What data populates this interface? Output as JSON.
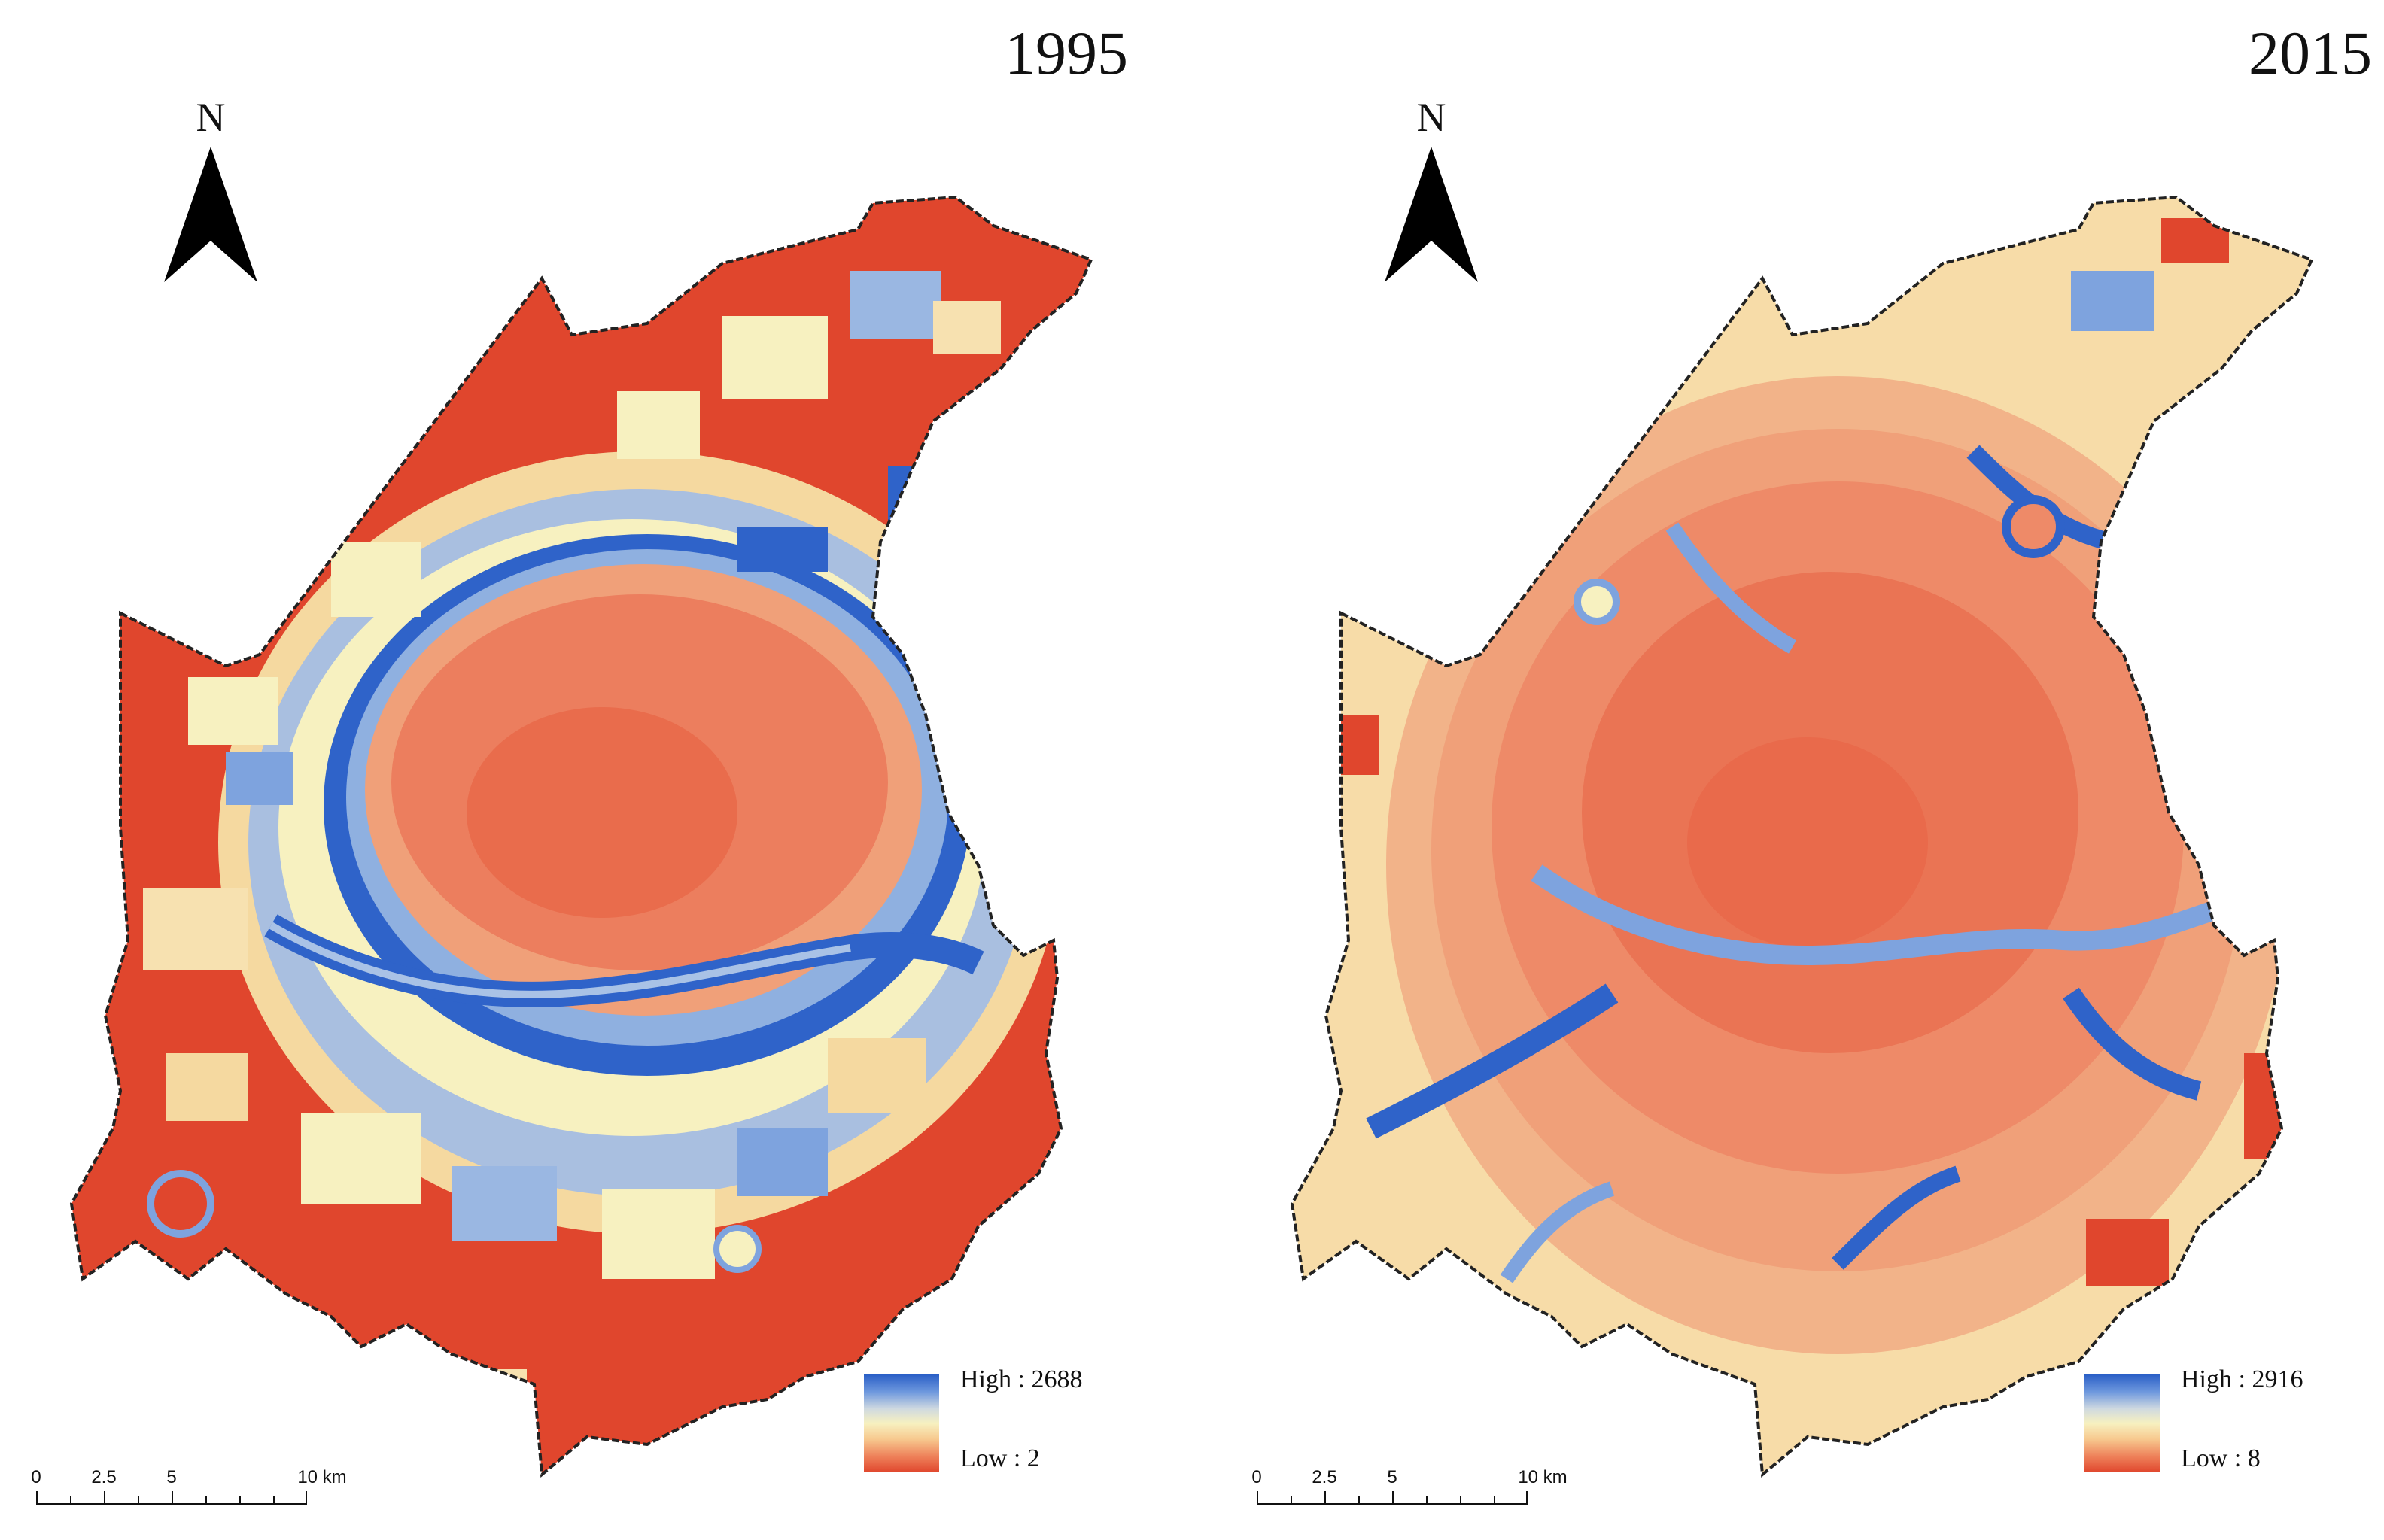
{
  "panels": [
    {
      "year": "1995",
      "north_label": "N",
      "legend": {
        "high_label": "High : 2688",
        "low_label": "Low : 2"
      },
      "scale": {
        "ticks": [
          "0",
          "2.5",
          "5",
          "10 km"
        ]
      }
    },
    {
      "year": "2015",
      "north_label": "N",
      "legend": {
        "high_label": "High : 2916",
        "low_label": "Low : 8"
      },
      "scale": {
        "ticks": [
          "0",
          "2.5",
          "5",
          "10 km"
        ]
      }
    }
  ],
  "colors": {
    "high": "#2a5fc6",
    "mid": "#f7f1c0",
    "low": "#e0462d",
    "boundary": "#222222"
  }
}
